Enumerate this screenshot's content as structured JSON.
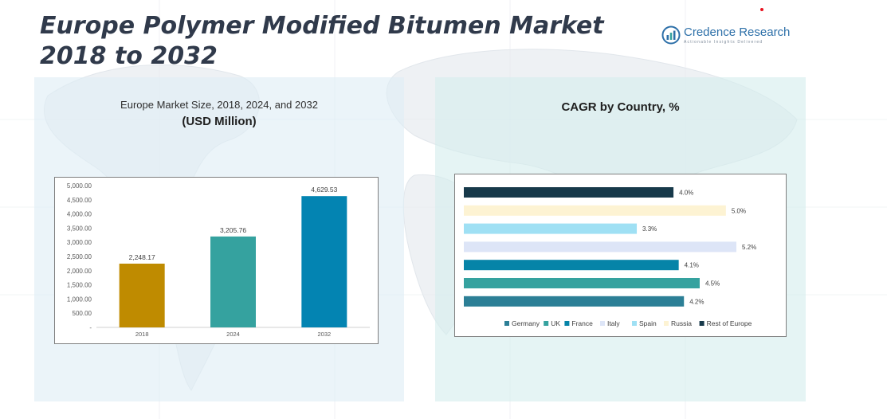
{
  "header": {
    "title": "Europe Polymer Modified Bitumen Market 2018 to 2032",
    "logo_name": "Credence Research",
    "logo_tagline": "Actionable Insights Delivered"
  },
  "colors": {
    "title": "#303a4b",
    "bar_2018": "#bf8b00",
    "bar_2024": "#35a29f",
    "bar_2032": "#0384b2"
  },
  "chart_data": [
    {
      "type": "bar",
      "title": "Europe Market Size, 2018, 2024, and 2032",
      "subtitle": "(USD Million)",
      "categories": [
        "2018",
        "2024",
        "2032"
      ],
      "values": [
        2248.17,
        3205.76,
        4629.53
      ],
      "value_labels": [
        "2,248.17",
        "3,205.76",
        "4,629.53"
      ],
      "colors": [
        "#bf8b00",
        "#35a29f",
        "#0384b2"
      ],
      "ylim": [
        0,
        5000
      ],
      "y_ticks": [
        0,
        500,
        1000,
        1500,
        2000,
        2500,
        3000,
        3500,
        4000,
        4500,
        5000
      ],
      "y_tick_labels": [
        "-",
        "500.00",
        "1,000.00",
        "1,500.00",
        "2,000.00",
        "2,500.00",
        "3,000.00",
        "3,500.00",
        "4,000.00",
        "4,500.00",
        "5,000.00"
      ],
      "grid": false
    },
    {
      "type": "bar",
      "orientation": "horizontal",
      "title": "CAGR by Country, %",
      "categories": [
        "Germany",
        "UK",
        "France",
        "Italy",
        "Spain",
        "Russia",
        "Rest of Europe"
      ],
      "values": [
        4.2,
        4.5,
        4.1,
        5.2,
        3.3,
        5.0,
        4.0
      ],
      "value_labels": [
        "4.2%",
        "4.5%",
        "4.1%",
        "5.2%",
        "3.3%",
        "5.0%",
        "4.0%"
      ],
      "colors": [
        "#2c7f96",
        "#35a29f",
        "#0684a8",
        "#dde5f7",
        "#9fe0f4",
        "#fdf3d3",
        "#17394a"
      ],
      "xlim": [
        0,
        5.2
      ],
      "legend_position": "bottom",
      "grid": false
    }
  ]
}
